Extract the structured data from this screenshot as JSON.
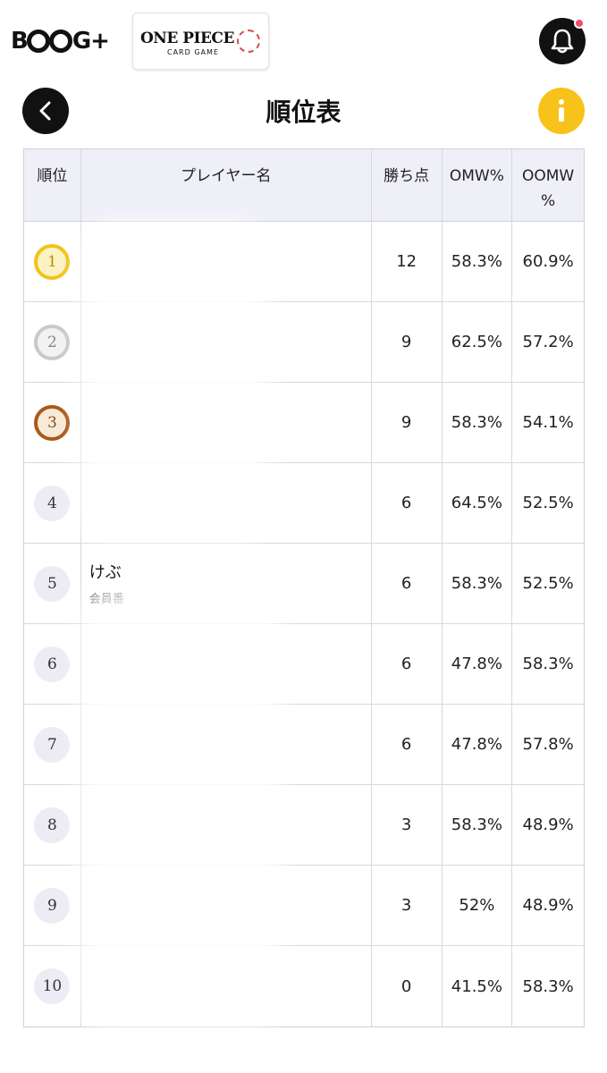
{
  "header": {
    "bcg_logo_text": "B",
    "bcg_logo_suffix": "G+",
    "op_logo_title": "ONE PIECE",
    "op_logo_sub": "CARD GAME",
    "title": "順位表"
  },
  "table": {
    "headers": {
      "rank": "順位",
      "player": "プレイヤー名",
      "points": "勝ち点",
      "omw": "OMW%",
      "oomw": "OOMW\n%"
    },
    "rows": [
      {
        "rank": "1",
        "name": "",
        "member": "",
        "points": "12",
        "omw": "58.3%",
        "oomw": "60.9%"
      },
      {
        "rank": "2",
        "name": "",
        "member": "",
        "points": "9",
        "omw": "62.5%",
        "oomw": "57.2%"
      },
      {
        "rank": "3",
        "name": "",
        "member": "",
        "points": "9",
        "omw": "58.3%",
        "oomw": "54.1%"
      },
      {
        "rank": "4",
        "name": "",
        "member": "",
        "points": "6",
        "omw": "64.5%",
        "oomw": "52.5%"
      },
      {
        "rank": "5",
        "name": "けぶ",
        "member": "会員番",
        "points": "6",
        "omw": "58.3%",
        "oomw": "52.5%"
      },
      {
        "rank": "6",
        "name": "",
        "member": "",
        "points": "6",
        "omw": "47.8%",
        "oomw": "58.3%"
      },
      {
        "rank": "7",
        "name": "",
        "member": "",
        "points": "6",
        "omw": "47.8%",
        "oomw": "57.8%"
      },
      {
        "rank": "8",
        "name": "",
        "member": "",
        "points": "3",
        "omw": "58.3%",
        "oomw": "48.9%"
      },
      {
        "rank": "9",
        "name": "",
        "member": "",
        "points": "3",
        "omw": "52%",
        "oomw": "48.9%"
      },
      {
        "rank": "10",
        "name": "",
        "member": "",
        "points": "0",
        "omw": "41.5%",
        "oomw": "58.3%"
      }
    ]
  },
  "icons": {
    "bell": "bell-icon",
    "notification_dot": "notification-dot",
    "back": "chevron-left-icon",
    "info": "info-icon"
  },
  "colors": {
    "gold": "#f2c318",
    "silver": "#c9c9cc",
    "bronze": "#a95a1c",
    "info": "#f7c31a",
    "notification": "#f04f6a",
    "header_bg": "#efeff8"
  }
}
